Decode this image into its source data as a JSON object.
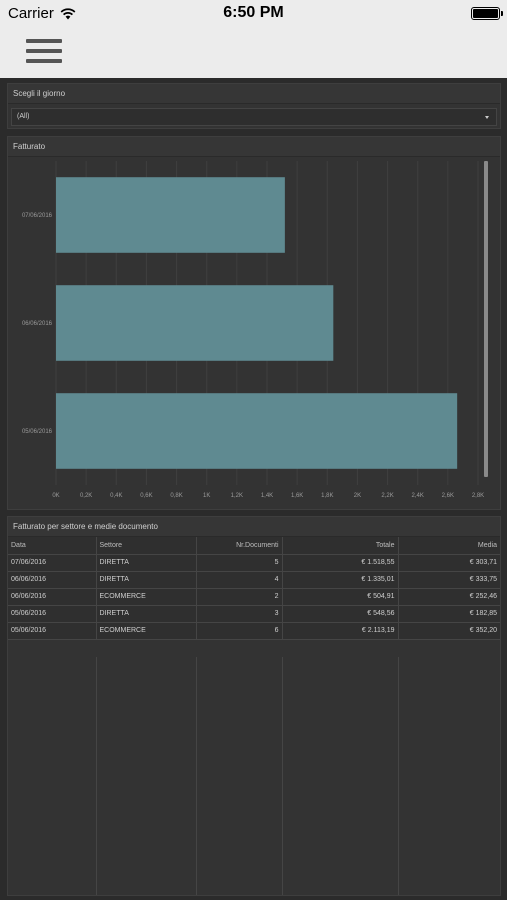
{
  "status_bar": {
    "carrier": "Carrier",
    "time": "6:50 PM"
  },
  "day_selector": {
    "title": "Scegli il giorno",
    "selected": "(All)"
  },
  "revenue_chart": {
    "title": "Fatturato"
  },
  "chart_data": {
    "type": "bar",
    "orientation": "horizontal",
    "categories": [
      "07/06/2016",
      "06/06/2016",
      "05/06/2016"
    ],
    "values": [
      1518.55,
      1839.92,
      2661.75
    ],
    "xlim": [
      0,
      2800
    ],
    "xticks": [
      0,
      200,
      400,
      600,
      800,
      1000,
      1200,
      1400,
      1600,
      1800,
      2000,
      2200,
      2400,
      2600,
      2800
    ],
    "xtick_labels": [
      "0K",
      "0,2K",
      "0,4K",
      "0,6K",
      "0,8K",
      "1K",
      "1,2K",
      "1,4K",
      "1,6K",
      "1,8K",
      "2K",
      "2,2K",
      "2,4K",
      "2,6K",
      "2,8K"
    ],
    "grid": true,
    "bar_color": "#5f8a91"
  },
  "sector_table": {
    "title": "Fatturato per settore e medie documento",
    "columns": [
      "Data",
      "Settore",
      "Nr.Documenti",
      "Totale",
      "Media"
    ],
    "rows": [
      [
        "07/06/2016",
        "DIRETTA",
        "5",
        "€ 1.518,55",
        "€ 303,71"
      ],
      [
        "06/06/2016",
        "DIRETTA",
        "4",
        "€ 1.335,01",
        "€ 333,75"
      ],
      [
        "06/06/2016",
        "ECOMMERCE",
        "2",
        "€ 504,91",
        "€ 252,46"
      ],
      [
        "05/06/2016",
        "DIRETTA",
        "3",
        "€ 548,56",
        "€ 182,85"
      ],
      [
        "05/06/2016",
        "ECOMMERCE",
        "6",
        "€ 2.113,19",
        "€ 352,20"
      ]
    ]
  }
}
